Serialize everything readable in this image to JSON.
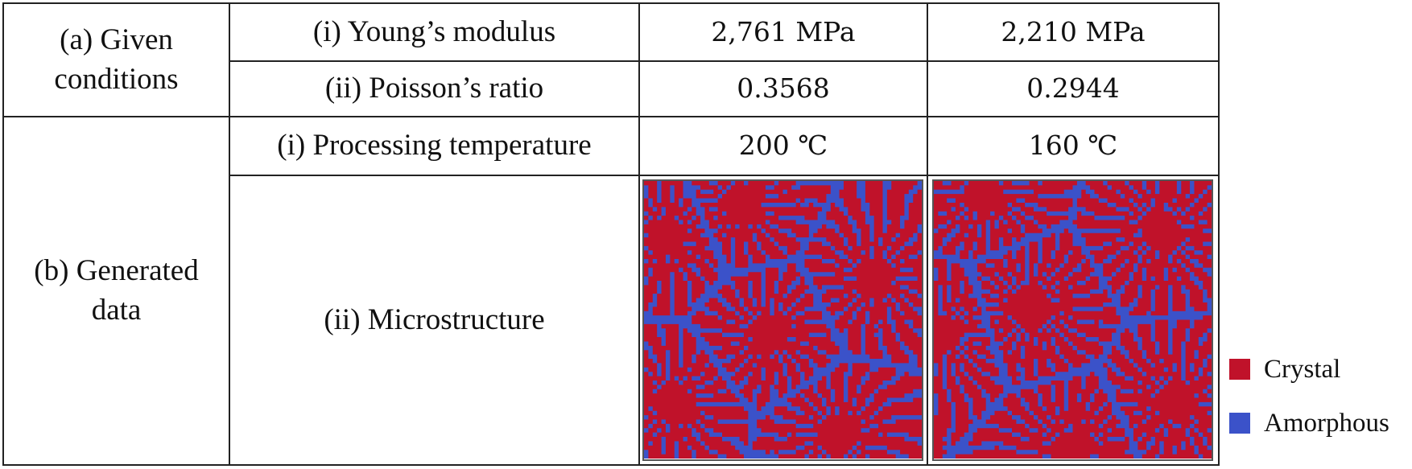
{
  "table": {
    "groups": [
      {
        "label": "(a) Given conditions",
        "rows": [
          {
            "label": "(i) Young’s modulus",
            "cells": [
              "2,761 MPa",
              "2,210 MPa"
            ]
          },
          {
            "label": "(ii) Poisson’s ratio",
            "cells": [
              "0.3568",
              "0.2944"
            ]
          }
        ]
      },
      {
        "label": "(b) Generated data",
        "rows": [
          {
            "label": "(i) Processing temperature",
            "cells": [
              "200 ℃",
              "160 ℃"
            ]
          },
          {
            "label": "(ii) Microstructure"
          }
        ]
      }
    ]
  },
  "legend": [
    {
      "label": "Crystal",
      "color": "#c0122a"
    },
    {
      "label": "Amorphous",
      "color": "#3b52c9"
    }
  ]
}
